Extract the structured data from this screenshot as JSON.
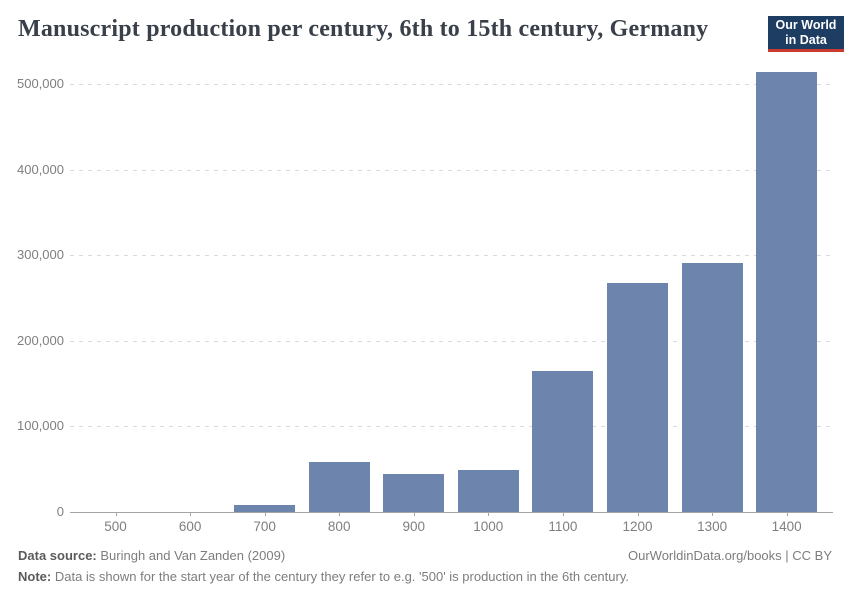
{
  "header": {
    "title": "Manuscript production per century, 6th to 15th century, Germany",
    "logo_line1": "Our World",
    "logo_line2": "in Data"
  },
  "chart_data": {
    "type": "bar",
    "title": "Manuscript production per century, 6th to 15th century, Germany",
    "categories": [
      "500",
      "600",
      "700",
      "800",
      "900",
      "1000",
      "1100",
      "1200",
      "1300",
      "1400"
    ],
    "values": [
      0,
      0,
      8000,
      59000,
      45000,
      49000,
      165000,
      268000,
      291000,
      514000
    ],
    "xlabel": "",
    "ylabel": "",
    "ylim": [
      0,
      500000
    ],
    "yticks": [
      0,
      100000,
      200000,
      300000,
      400000,
      500000
    ],
    "ytick_labels": [
      "0",
      "100,000",
      "200,000",
      "300,000",
      "400,000",
      "500,000"
    ],
    "grid": "horizontal-dashed",
    "legend": "none",
    "bar_color": "#6d85ad"
  },
  "footer": {
    "source_label": "Data source:",
    "source_text": "Buringh and Van Zanden (2009)",
    "note_label": "Note:",
    "note_text": "Data is shown for the start year of the century they refer to e.g. '500' is production in the 6th century.",
    "credit": "OurWorldinData.org/books | CC BY"
  },
  "colors": {
    "bar": "#6d85ad",
    "gridline": "#dadada",
    "axis": "#a5a5a5",
    "tick_label": "#7f7f7f",
    "title": "#3a404a",
    "logo_bg": "#1d3d63",
    "logo_red": "#cc392e"
  }
}
